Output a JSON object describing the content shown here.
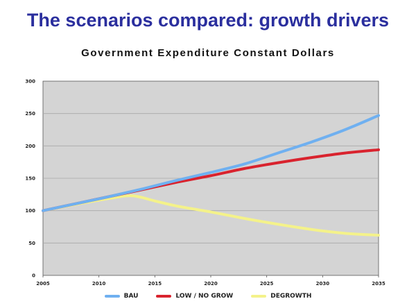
{
  "slide": {
    "title": "The scenarios compared: growth drivers"
  },
  "chart_data": {
    "type": "line",
    "title": "Government Expenditure Constant Dollars",
    "xlabel": "",
    "ylabel": "",
    "xlim": [
      2005,
      2035
    ],
    "ylim": [
      0,
      300
    ],
    "x_ticks": [
      "2005",
      "2010",
      "2015",
      "2020",
      "2025",
      "2030",
      "2035"
    ],
    "y_ticks": [
      "0",
      "50",
      "100",
      "150",
      "200",
      "250",
      "300"
    ],
    "grid": true,
    "legend_position": "bottom",
    "series": [
      {
        "name": "BAU",
        "color": "#6fb0f0",
        "x": [
          2005,
          2008,
          2011,
          2014,
          2017,
          2020,
          2023,
          2026,
          2029,
          2032,
          2035
        ],
        "values": [
          100,
          111,
          122,
          134,
          147,
          159,
          172,
          189,
          206,
          225,
          247
        ]
      },
      {
        "name": "LOW / NO GROW",
        "color": "#d9232e",
        "x": [
          2005,
          2008,
          2011,
          2014,
          2017,
          2020,
          2023,
          2026,
          2029,
          2032,
          2035
        ],
        "values": [
          100,
          111,
          122,
          133,
          144,
          154,
          165,
          174,
          182,
          189,
          194
        ]
      },
      {
        "name": "DEGROWTH",
        "color": "#f4f28a",
        "x": [
          2005,
          2008,
          2011,
          2013,
          2015,
          2017,
          2020,
          2023,
          2026,
          2029,
          2032,
          2035
        ],
        "values": [
          100,
          110,
          119,
          123,
          115,
          107,
          98,
          88,
          79,
          71,
          65,
          62
        ]
      }
    ]
  }
}
